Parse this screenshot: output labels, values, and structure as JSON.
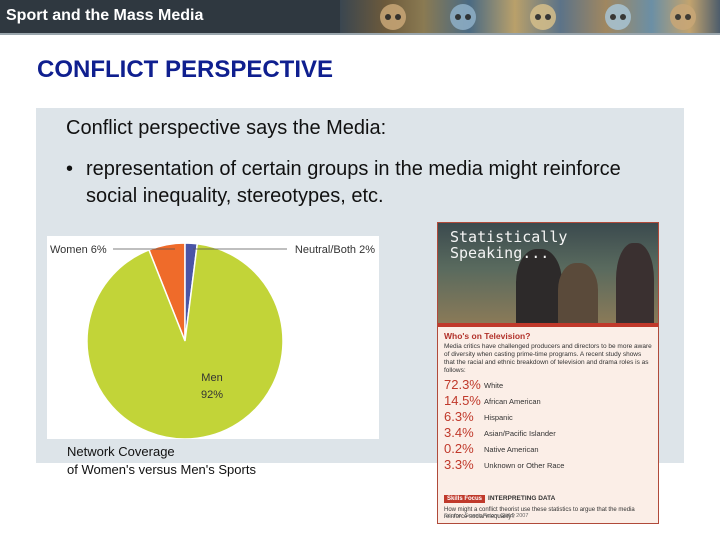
{
  "header": {
    "title": "Sport and the Mass Media"
  },
  "slide": {
    "heading": "CONFLICT PERSPECTIVE",
    "intro": "Conflict perspective says the Media:",
    "bullet_symbol": "•",
    "bullet": "representation of certain groups in the media might reinforce social inequality, stereotypes, etc."
  },
  "chart_data": {
    "type": "pie",
    "title": "",
    "slices": [
      {
        "label": "Men",
        "value": 92,
        "display": "Men",
        "display_value": "92%",
        "color": "#c2d438"
      },
      {
        "label": "Women",
        "value": 6,
        "display": "Women 6%",
        "color": "#ef6b2a"
      },
      {
        "label": "Neutral/Both",
        "value": 2,
        "display": "Neutral/Both 2%",
        "color": "#4a55a6"
      }
    ]
  },
  "caption": {
    "line1": "Network Coverage",
    "line2": "of Women's versus Men's Sports"
  },
  "textbook": {
    "title_line1": "Statistically",
    "title_line2": "Speaking...",
    "box_title": "Who's on Television?",
    "description": "Media critics have challenged producers and directors to be more aware of diversity when casting prime-time programs. A recent study shows that the racial and ethnic breakdown of television and drama roles is as follows:",
    "rows": [
      {
        "pct": "72.3%",
        "label": "White"
      },
      {
        "pct": "14.5%",
        "label": "African American"
      },
      {
        "pct": "6.3%",
        "label": "Hispanic"
      },
      {
        "pct": "3.4%",
        "label": "Asian/Pacific Islander"
      },
      {
        "pct": "0.2%",
        "label": "Native American"
      },
      {
        "pct": "3.3%",
        "label": "Unknown or Other Race"
      }
    ],
    "skills_tag": "Skills Focus",
    "skills_title": "INTERPRETING DATA",
    "skills_question": "How might a conflict theorist use these statistics to argue that the media reinforce social inequality?",
    "source": "Source: Screen Actors Guild, 2007"
  }
}
